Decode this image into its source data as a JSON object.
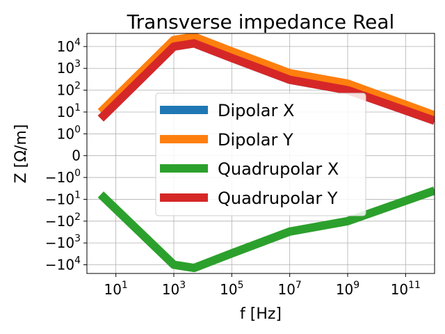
{
  "chart_data": {
    "type": "line",
    "title": "Transverse impedance Real",
    "xlabel": "f [Hz]",
    "ylabel": "Z [Ω/m]",
    "xscale": "log",
    "yscale": "symlog",
    "xlim": [
      1,
      1000000000000.0
    ],
    "ylim": [
      -25000,
      40000
    ],
    "grid": true,
    "legend_position": "center",
    "x_ticks": [
      {
        "value": 10,
        "label": "10",
        "exp": "1"
      },
      {
        "value": 1000,
        "label": "10",
        "exp": "3"
      },
      {
        "value": 100000,
        "label": "10",
        "exp": "5"
      },
      {
        "value": 10000000,
        "label": "10",
        "exp": "7"
      },
      {
        "value": 1000000000,
        "label": "10",
        "exp": "9"
      },
      {
        "value": 100000000000,
        "label": "10",
        "exp": "11"
      }
    ],
    "y_ticks": [
      {
        "value": 10000,
        "label": "10",
        "exp": "4"
      },
      {
        "value": 1000,
        "label": "10",
        "exp": "3"
      },
      {
        "value": 100,
        "label": "10",
        "exp": "2"
      },
      {
        "value": 10,
        "label": "10",
        "exp": "1"
      },
      {
        "value": 1,
        "label": "10",
        "exp": "0"
      },
      {
        "value": 0,
        "label": "0",
        "exp": ""
      },
      {
        "value": -1,
        "label": "−10",
        "exp": "0"
      },
      {
        "value": -10,
        "label": "−10",
        "exp": "1"
      },
      {
        "value": -100,
        "label": "−10",
        "exp": "2"
      },
      {
        "value": -1000,
        "label": "−10",
        "exp": "3"
      },
      {
        "value": -10000,
        "label": "−10",
        "exp": "4"
      }
    ],
    "series": [
      {
        "name": "Dipolar X",
        "color": "#1f77b4",
        "x": [
          3,
          1000,
          5000,
          100000,
          10000000,
          1000000000,
          1000000000000
        ],
        "y": [
          5,
          10000,
          14000,
          3000,
          300,
          100,
          4
        ]
      },
      {
        "name": "Dipolar Y",
        "color": "#ff7f0e",
        "x": [
          3,
          1000,
          5000,
          100000,
          10000000,
          1000000000,
          1000000000000
        ],
        "y": [
          10,
          20000,
          28000,
          6000,
          600,
          200,
          7
        ]
      },
      {
        "name": "Quadrupolar X",
        "color": "#2ca02c",
        "x": [
          3,
          1000,
          5000,
          100000,
          10000000,
          1000000000,
          1000000000000
        ],
        "y": [
          -6,
          -10000,
          -14000,
          -3000,
          -300,
          -100,
          -4
        ]
      },
      {
        "name": "Quadrupolar Y",
        "color": "#d62728",
        "x": [
          3,
          1000,
          5000,
          100000,
          10000000,
          1000000000,
          1000000000000
        ],
        "y": [
          5,
          10000,
          14000,
          3000,
          300,
          100,
          4
        ]
      }
    ]
  }
}
